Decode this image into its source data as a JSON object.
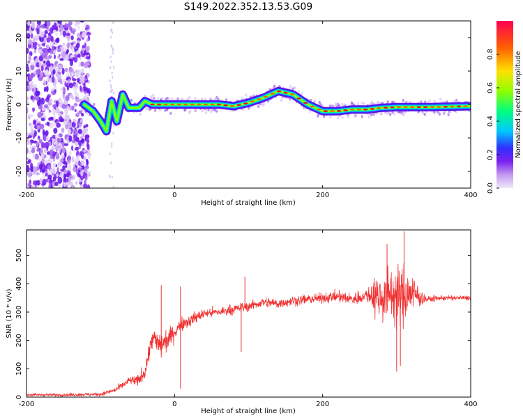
{
  "figure": {
    "title": "S149.2022.352.13.53.G09"
  },
  "chart_data": [
    {
      "type": "heatmap",
      "xlabel": "Height of straight line (km)",
      "ylabel": "Frequency (Hz)",
      "xlim": [
        -200,
        400
      ],
      "ylim": [
        -25,
        25
      ],
      "xticks": [
        -200,
        0,
        200,
        400
      ],
      "yticks": [
        -20,
        -10,
        0,
        10,
        20
      ],
      "colorbar": {
        "label": "Normalized spectral amplitude",
        "range": [
          0,
          1
        ],
        "ticks": [
          0.0,
          0.2,
          0.4,
          0.6,
          0.8
        ],
        "colors": [
          "#f0e8f8",
          "#c49af0",
          "#7a20f0",
          "#3030ff",
          "#00c8ff",
          "#00ff80",
          "#90ff00",
          "#ffe000",
          "#ff6000",
          "#ff0030"
        ]
      },
      "ridge": {
        "x": [
          -122,
          -110,
          -100,
          -92,
          -85,
          -78,
          -70,
          -62,
          -55,
          -48,
          -40,
          -30,
          -20,
          0,
          20,
          40,
          60,
          80,
          100,
          120,
          140,
          160,
          180,
          200,
          220,
          240,
          260,
          280,
          300,
          320,
          340,
          360,
          380,
          404
        ],
        "y": [
          0,
          -2,
          -5,
          -8,
          1,
          -5,
          3,
          -1,
          -1,
          -1,
          1,
          0,
          0,
          0,
          0,
          0,
          0,
          -0.5,
          0.5,
          2,
          4,
          3,
          0,
          -2,
          -2,
          -1.5,
          -1.5,
          -1,
          -0.8,
          -0.8,
          -0.8,
          -0.7,
          -0.6,
          -0.5
        ]
      },
      "noise_region": {
        "x_range": [
          -200,
          -115
        ],
        "note_count": 0
      }
    },
    {
      "type": "line",
      "xlabel": "Height of straight line (km)",
      "ylabel": "SNR (10 * v/v)",
      "xlim": [
        -200,
        400
      ],
      "ylim": [
        0,
        590
      ],
      "xticks": [
        -200,
        0,
        200,
        400
      ],
      "yticks": [
        0,
        100,
        200,
        300,
        400,
        500
      ],
      "color": "#f03030",
      "envelope": {
        "x": [
          -200,
          -150,
          -100,
          -80,
          -60,
          -50,
          -40,
          -30,
          -20,
          -10,
          0,
          10,
          20,
          40,
          60,
          80,
          100,
          120,
          140,
          160,
          180,
          200,
          220,
          240,
          260,
          270,
          280,
          290,
          300,
          310,
          320,
          330,
          340,
          360,
          380,
          404
        ],
        "y": [
          8,
          8,
          10,
          25,
          60,
          55,
          90,
          210,
          180,
          200,
          230,
          260,
          270,
          295,
          300,
          310,
          320,
          335,
          330,
          340,
          345,
          350,
          355,
          345,
          360,
          360,
          350,
          370,
          355,
          360,
          370,
          355,
          345,
          350,
          350,
          350
        ]
      },
      "spread": {
        "x": [
          -200,
          -100,
          -60,
          -40,
          -20,
          0,
          40,
          100,
          200,
          260,
          270,
          290,
          310,
          330,
          340,
          404
        ],
        "y": [
          6,
          8,
          20,
          40,
          70,
          40,
          25,
          25,
          25,
          35,
          100,
          140,
          150,
          60,
          15,
          12
        ]
      },
      "spikes": [
        {
          "x": -18,
          "y": 395
        },
        {
          "x": 8,
          "y": 390
        },
        {
          "x": 95,
          "y": 425
        },
        {
          "x": 90,
          "y": 160
        },
        {
          "x": 8,
          "y": 30
        },
        {
          "x": 287,
          "y": 540
        },
        {
          "x": 310,
          "y": 585
        },
        {
          "x": 300,
          "y": 90
        },
        {
          "x": 305,
          "y": 110
        }
      ]
    }
  ]
}
